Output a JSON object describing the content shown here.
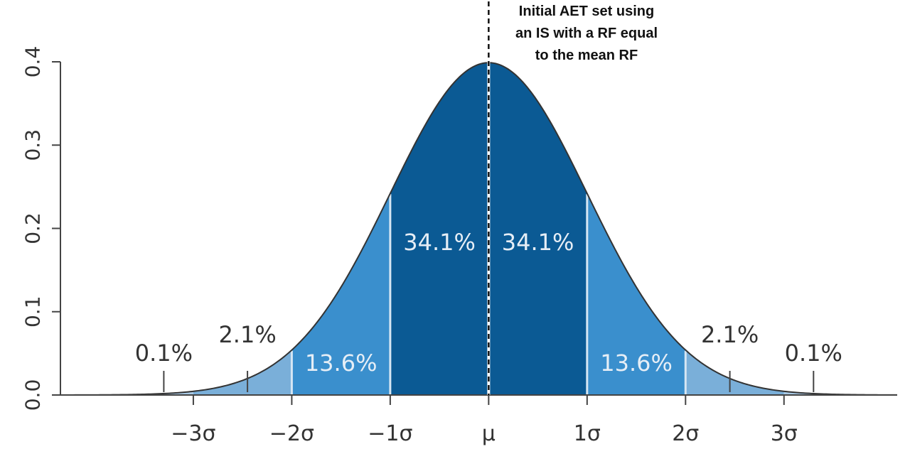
{
  "chart_data": {
    "type": "area",
    "title": "",
    "xlabel": "",
    "ylabel": "",
    "distribution": "normal",
    "mean": 0,
    "sd": 1,
    "xlim": [
      -4.35,
      4.15
    ],
    "ylim": [
      0,
      0.4
    ],
    "y_ticks": [
      0.0,
      0.1,
      0.2,
      0.3,
      0.4
    ],
    "y_tick_labels": [
      "0.0",
      "0.1",
      "0.2",
      "0.3",
      "0.4"
    ],
    "x_ticks": [
      -3,
      -2,
      -1,
      0,
      1,
      2,
      3
    ],
    "x_tick_labels": [
      "−3σ",
      "−2σ",
      "−1σ",
      "μ",
      "1σ",
      "2σ",
      "3σ"
    ],
    "bands": [
      {
        "from": -1,
        "to": 0,
        "percent": "34.1%",
        "color": "#0b5a94"
      },
      {
        "from": 0,
        "to": 1,
        "percent": "34.1%",
        "color": "#0b5a94"
      },
      {
        "from": -2,
        "to": -1,
        "percent": "13.6%",
        "color": "#3a8fcd"
      },
      {
        "from": 1,
        "to": 2,
        "percent": "13.6%",
        "color": "#3a8fcd"
      },
      {
        "from": -3,
        "to": -2,
        "percent": "2.1%",
        "color": "#7aafd9"
      },
      {
        "from": 2,
        "to": 3,
        "percent": "2.1%",
        "color": "#7aafd9"
      },
      {
        "from": -4.35,
        "to": -3,
        "percent": "0.1%",
        "color": "#a9cae6"
      },
      {
        "from": 3,
        "to": 4.15,
        "percent": "0.1%",
        "color": "#a9cae6"
      }
    ],
    "pointer_ticks": [
      -3.3,
      -2.45,
      2.45,
      3.3
    ],
    "annotation": {
      "lines": [
        "Initial AET set using",
        "an IS with a RF equal",
        "to the mean RF"
      ],
      "x": 0
    },
    "grid": false,
    "legend": "none"
  }
}
